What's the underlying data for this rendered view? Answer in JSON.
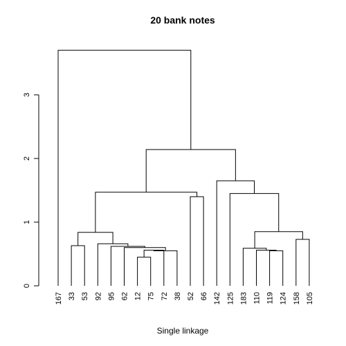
{
  "chart_data": {
    "type": "dendrogram",
    "title": "20 bank notes",
    "xlabel": "Single linkage",
    "ylabel": "",
    "ylim": [
      0,
      3.7
    ],
    "yticks": [
      0,
      1,
      2,
      3
    ],
    "leaves": [
      "167",
      "33",
      "53",
      "92",
      "95",
      "62",
      "12",
      "75",
      "72",
      "38",
      "52",
      "66",
      "142",
      "125",
      "183",
      "110",
      "119",
      "124",
      "158",
      "105"
    ],
    "merges": [
      {
        "left": "L:12",
        "right": "L:75",
        "height": 0.45
      },
      {
        "left": "M:0",
        "right": "L:72",
        "height": 0.56
      },
      {
        "left": "M:1",
        "right": "L:38",
        "height": 0.55
      },
      {
        "left": "L:62",
        "right": "M:2",
        "height": 0.6
      },
      {
        "left": "L:95",
        "right": "M:3",
        "height": 0.62
      },
      {
        "left": "L:92",
        "right": "M:4",
        "height": 0.66
      },
      {
        "left": "L:33",
        "right": "L:53",
        "height": 0.63
      },
      {
        "left": "M:6",
        "right": "M:5",
        "height": 0.84
      },
      {
        "left": "L:52",
        "right": "L:66",
        "height": 1.4
      },
      {
        "left": "M:7",
        "right": "M:8",
        "height": 1.47
      },
      {
        "left": "L:119",
        "right": "L:124",
        "height": 0.55
      },
      {
        "left": "L:110",
        "right": "M:10",
        "height": 0.56
      },
      {
        "left": "L:183",
        "right": "M:11",
        "height": 0.59
      },
      {
        "left": "L:158",
        "right": "L:105",
        "height": 0.73
      },
      {
        "left": "M:12",
        "right": "M:13",
        "height": 0.85
      },
      {
        "left": "L:125",
        "right": "M:14",
        "height": 1.45
      },
      {
        "left": "L:142",
        "right": "M:15",
        "height": 1.65
      },
      {
        "left": "M:9",
        "right": "M:16",
        "height": 2.14
      },
      {
        "left": "L:167",
        "right": "M:17",
        "height": 3.7
      }
    ]
  }
}
